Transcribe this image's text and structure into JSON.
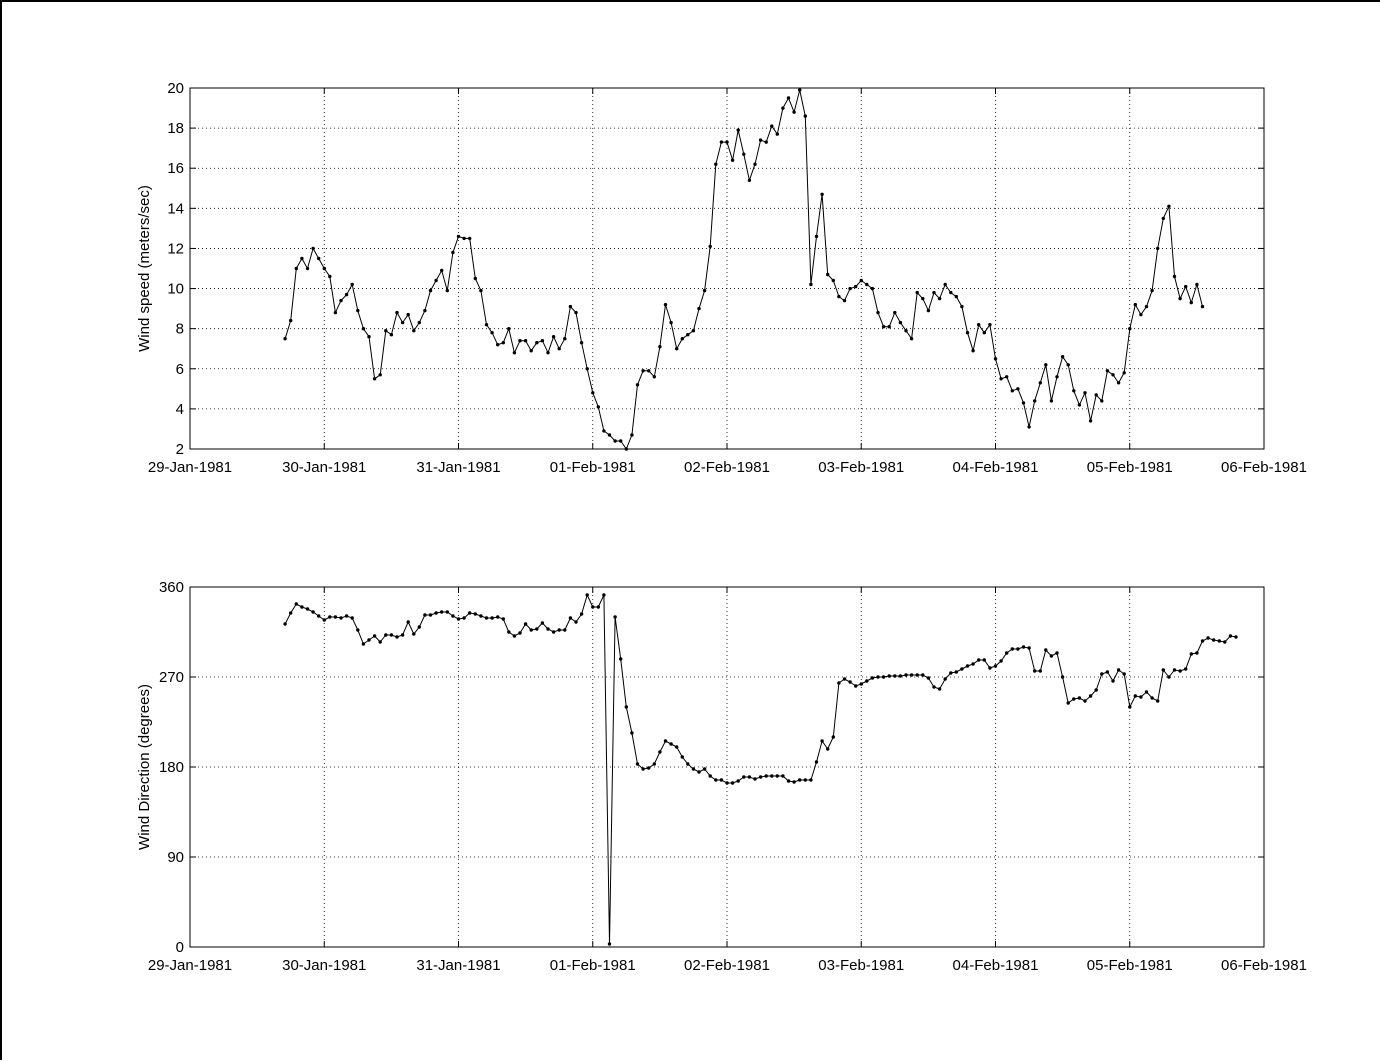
{
  "chart_data": [
    {
      "type": "line",
      "ylabel": "Wind speed (meters/sec)",
      "ylim": [
        2,
        20
      ],
      "yticks": [
        2,
        4,
        6,
        8,
        10,
        12,
        14,
        16,
        18,
        20
      ],
      "xticks": [
        "29-Jan-1981",
        "30-Jan-1981",
        "31-Jan-1981",
        "01-Feb-1981",
        "02-Feb-1981",
        "03-Feb-1981",
        "04-Feb-1981",
        "05-Feb-1981",
        "06-Feb-1981"
      ],
      "x_start": "1981-01-29T17:00",
      "x_step_hours": 1,
      "grid": true,
      "values": [
        7.5,
        8.4,
        11.0,
        11.5,
        11.0,
        12.0,
        11.5,
        11.0,
        10.6,
        8.8,
        9.4,
        9.7,
        10.2,
        8.9,
        8.0,
        7.6,
        5.5,
        5.7,
        7.9,
        7.7,
        8.8,
        8.3,
        8.7,
        7.9,
        8.3,
        8.9,
        9.9,
        10.4,
        10.9,
        9.9,
        11.8,
        12.6,
        12.5,
        12.5,
        10.5,
        9.9,
        8.2,
        7.8,
        7.2,
        7.3,
        8.0,
        6.8,
        7.4,
        7.4,
        6.9,
        7.3,
        7.4,
        6.8,
        7.6,
        7.0,
        7.5,
        9.1,
        8.8,
        7.3,
        6.0,
        4.8,
        4.1,
        2.9,
        2.7,
        2.4,
        2.4,
        2.0,
        2.7,
        5.2,
        5.9,
        5.9,
        5.6,
        7.1,
        9.2,
        8.3,
        7.0,
        7.5,
        7.7,
        7.9,
        9.0,
        9.9,
        12.1,
        16.2,
        17.3,
        17.3,
        16.4,
        17.9,
        16.7,
        15.4,
        16.2,
        17.4,
        17.3,
        18.1,
        17.7,
        19.0,
        19.5,
        18.8,
        19.9,
        18.6,
        10.2,
        12.6,
        14.7,
        10.7,
        10.4,
        9.6,
        9.4,
        10.0,
        10.1,
        10.4,
        10.2,
        10.0,
        8.8,
        8.1,
        8.1,
        8.8,
        8.3,
        7.9,
        7.5,
        9.8,
        9.5,
        8.9,
        9.8,
        9.5,
        10.2,
        9.8,
        9.6,
        9.1,
        7.8,
        6.9,
        8.2,
        7.8,
        8.2,
        6.5,
        5.5,
        5.6,
        4.9,
        5.0,
        4.3,
        3.1,
        4.4,
        5.3,
        6.2,
        4.4,
        5.6,
        6.6,
        6.2,
        4.9,
        4.2,
        4.8,
        3.4,
        4.7,
        4.4,
        5.9,
        5.7,
        5.3,
        5.8,
        8.0,
        9.2,
        8.7,
        9.1,
        9.9,
        12.0,
        13.5,
        14.1,
        10.6,
        9.5,
        10.1,
        9.3,
        10.2,
        9.1
      ]
    },
    {
      "type": "line",
      "ylabel": "Wind Direction (degrees)",
      "ylim": [
        0,
        360
      ],
      "yticks": [
        0,
        90,
        180,
        270,
        360
      ],
      "xticks": [
        "29-Jan-1981",
        "30-Jan-1981",
        "31-Jan-1981",
        "01-Feb-1981",
        "02-Feb-1981",
        "03-Feb-1981",
        "04-Feb-1981",
        "05-Feb-1981",
        "06-Feb-1981"
      ],
      "x_start": "1981-01-29T17:00",
      "x_step_hours": 1,
      "grid": true,
      "values": [
        323,
        334,
        343,
        340,
        338,
        335,
        331,
        327,
        330,
        330,
        329,
        331,
        329,
        317,
        303,
        307,
        311,
        305,
        312,
        312,
        310,
        312,
        325,
        313,
        320,
        332,
        332,
        334,
        335,
        335,
        331,
        328,
        329,
        334,
        333,
        331,
        329,
        329,
        330,
        328,
        315,
        311,
        314,
        323,
        317,
        318,
        324,
        318,
        315,
        317,
        317,
        329,
        325,
        333,
        352,
        340,
        340,
        352,
        3,
        330,
        288,
        240,
        214,
        183,
        178,
        179,
        183,
        195,
        206,
        203,
        200,
        190,
        183,
        178,
        175,
        178,
        171,
        167,
        167,
        164,
        164,
        166,
        170,
        170,
        168,
        170,
        171,
        171,
        171,
        171,
        166,
        165,
        167,
        167,
        167,
        185,
        206,
        198,
        210,
        264,
        268,
        265,
        261,
        263,
        266,
        269,
        270,
        270,
        271,
        271,
        271,
        272,
        272,
        272,
        272,
        269,
        260,
        258,
        268,
        274,
        275,
        278,
        281,
        283,
        287,
        287,
        279,
        281,
        286,
        294,
        298,
        298,
        300,
        299,
        276,
        276,
        297,
        291,
        294,
        270,
        244,
        248,
        249,
        246,
        251,
        257,
        273,
        275,
        266,
        277,
        273,
        240,
        251,
        250,
        255,
        249,
        246,
        277,
        270,
        277,
        276,
        278,
        293,
        294,
        306,
        309,
        307,
        306,
        305,
        311,
        310
      ]
    }
  ]
}
